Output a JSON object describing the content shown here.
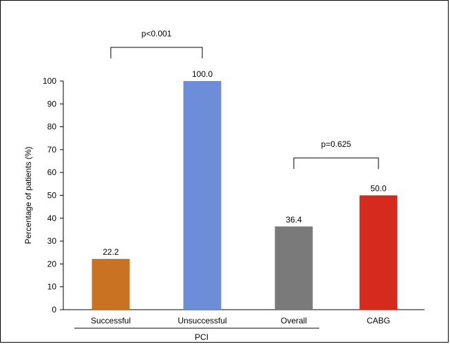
{
  "chart_data": {
    "type": "bar",
    "categories": [
      "Successful",
      "Unsuccessful",
      "Overall",
      "CABG"
    ],
    "values": [
      22.2,
      100.0,
      36.4,
      50.0
    ],
    "value_labels": [
      "22.2",
      "100.0",
      "36.4",
      "50.0"
    ],
    "colors": [
      "#C87322",
      "#6E8DD8",
      "#7A7A7A",
      "#D42B1E"
    ],
    "ylabel": "Percentage of patients (%)",
    "ylim": [
      0,
      100
    ],
    "yticks": [
      0,
      10,
      20,
      30,
      40,
      50,
      60,
      70,
      80,
      90,
      100
    ],
    "ytick_labels": [
      "0",
      "10",
      "20",
      "30",
      "40",
      "50",
      "60",
      "70",
      "80",
      "90",
      "100"
    ],
    "grid": false,
    "group_label": "PCI",
    "group_members": [
      "Successful",
      "Unsuccessful",
      "Overall"
    ],
    "annotations": [
      {
        "text": "p<0.001",
        "between": [
          "Successful",
          "Unsuccessful"
        ]
      },
      {
        "text": "p=0.625",
        "between": [
          "Overall",
          "CABG"
        ]
      }
    ]
  }
}
